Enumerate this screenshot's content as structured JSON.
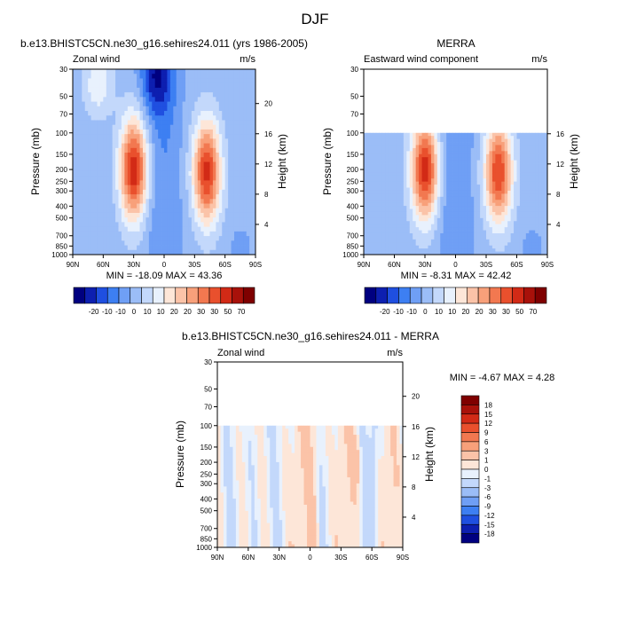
{
  "figure": {
    "title": "DJF"
  },
  "chart_data": [
    {
      "type": "heatmap",
      "title": "b.e13.BHISTC5CN.ne30_g16.sehires24.011 (yrs 1986-2005)",
      "left_label": "Zonal wind",
      "right_label": "m/s",
      "ylabel": "Pressure (mb)",
      "y2label": "Height (km)",
      "x_ticks": [
        "90N",
        "60N",
        "30N",
        "0",
        "30S",
        "60S",
        "90S"
      ],
      "y_ticks": [
        "30",
        "50",
        "70",
        "100",
        "150",
        "200",
        "250",
        "300",
        "400",
        "500",
        "700",
        "850",
        "1000"
      ],
      "y_tick_values": [
        30,
        50,
        70,
        100,
        150,
        200,
        250,
        300,
        400,
        500,
        700,
        850,
        1000
      ],
      "y2_ticks": [
        "4",
        "8",
        "12",
        "16",
        "20"
      ],
      "y2_tick_values": [
        4,
        8,
        12,
        16,
        20
      ],
      "xlim": [
        90,
        -90
      ],
      "ylim": [
        1000,
        30
      ],
      "y_scale": "log",
      "stats": "MIN = -18.09  MAX =  43.36",
      "data_top_pressure": 30,
      "features": [
        {
          "kind": "jet",
          "lat": 30,
          "p": 200,
          "peak": 42
        },
        {
          "kind": "jet",
          "lat": -42,
          "p": 210,
          "peak": 40
        },
        {
          "kind": "easterly",
          "lat": 8,
          "p": 35,
          "peak": -18
        },
        {
          "kind": "westerly",
          "lat": 65,
          "p": 40,
          "peak": 12
        }
      ]
    },
    {
      "type": "heatmap",
      "title": "MERRA",
      "left_label": "Eastward wind component",
      "right_label": "m/s",
      "ylabel": "Pressure (mb)",
      "y2label": "Height (km)",
      "x_ticks": [
        "90N",
        "60N",
        "30N",
        "0",
        "30S",
        "60S",
        "90S"
      ],
      "y_ticks": [
        "30",
        "50",
        "70",
        "100",
        "150",
        "200",
        "250",
        "300",
        "400",
        "500",
        "700",
        "850",
        "1000"
      ],
      "y_tick_values": [
        30,
        50,
        70,
        100,
        150,
        200,
        250,
        300,
        400,
        500,
        700,
        850,
        1000
      ],
      "y2_ticks": [
        "4",
        "8",
        "12",
        "16"
      ],
      "y2_tick_values": [
        4,
        8,
        12,
        16
      ],
      "xlim": [
        90,
        -90
      ],
      "ylim": [
        1000,
        30
      ],
      "y_scale": "log",
      "stats": "MIN = -8.31  MAX =  42.42",
      "data_top_pressure": 100,
      "features": [
        {
          "kind": "jet",
          "lat": 30,
          "p": 200,
          "peak": 41
        },
        {
          "kind": "jet",
          "lat": -42,
          "p": 210,
          "peak": 38
        }
      ]
    },
    {
      "type": "heatmap",
      "title": "b.e13.BHISTC5CN.ne30_g16.sehires24.011 - MERRA",
      "left_label": "Zonal wind",
      "right_label": "m/s",
      "ylabel": "Pressure (mb)",
      "y2label": "Height (km)",
      "x_ticks": [
        "90N",
        "60N",
        "30N",
        "0",
        "30S",
        "60S",
        "90S"
      ],
      "y_ticks": [
        "30",
        "50",
        "70",
        "100",
        "150",
        "200",
        "250",
        "300",
        "400",
        "500",
        "700",
        "850",
        "1000"
      ],
      "y_tick_values": [
        30,
        50,
        70,
        100,
        150,
        200,
        250,
        300,
        400,
        500,
        700,
        850,
        1000
      ],
      "y2_ticks": [
        "4",
        "8",
        "12",
        "16",
        "20"
      ],
      "y2_tick_values": [
        4,
        8,
        12,
        16,
        20
      ],
      "xlim": [
        90,
        -90
      ],
      "ylim": [
        1000,
        30
      ],
      "y_scale": "log",
      "stats": "MIN = -4.67  MAX =   4.28",
      "data_top_pressure": 100,
      "features": []
    }
  ],
  "colorbar_main": {
    "colors": [
      "#000080",
      "#0d1fb0",
      "#1f4fe0",
      "#3d7ff2",
      "#6f9ff5",
      "#9bbdf7",
      "#c3d8fb",
      "#e8f1fd",
      "#fde6d8",
      "#fbc3a8",
      "#f8a07a",
      "#f27850",
      "#e9502d",
      "#d22a16",
      "#a8110a",
      "#7f0000"
    ],
    "labels": [
      "-20",
      "-10",
      "-10",
      "0",
      "10",
      "10",
      "20",
      "20",
      "30",
      "30",
      "50",
      "70"
    ],
    "label_values": [
      -20,
      -10,
      -10,
      0,
      10,
      10,
      20,
      20,
      30,
      30,
      50,
      70
    ]
  },
  "colorbar_diff": {
    "colors": [
      "#000080",
      "#0d1fb0",
      "#1f4fe0",
      "#3d7ff2",
      "#6f9ff5",
      "#9bbdf7",
      "#c3d8fb",
      "#e8f1fd",
      "#fde6d8",
      "#fbc3a8",
      "#f8a07a",
      "#f27850",
      "#e9502d",
      "#d22a16",
      "#a8110a",
      "#7f0000"
    ],
    "labels": [
      "18",
      "15",
      "12",
      "9",
      "6",
      "3",
      "1",
      "0",
      "-1",
      "-3",
      "-6",
      "-9",
      "-12",
      "-15",
      "-18"
    ],
    "label_values": [
      18,
      15,
      12,
      9,
      6,
      3,
      1,
      0,
      -1,
      -3,
      -6,
      -9,
      -12,
      -15,
      -18
    ]
  }
}
